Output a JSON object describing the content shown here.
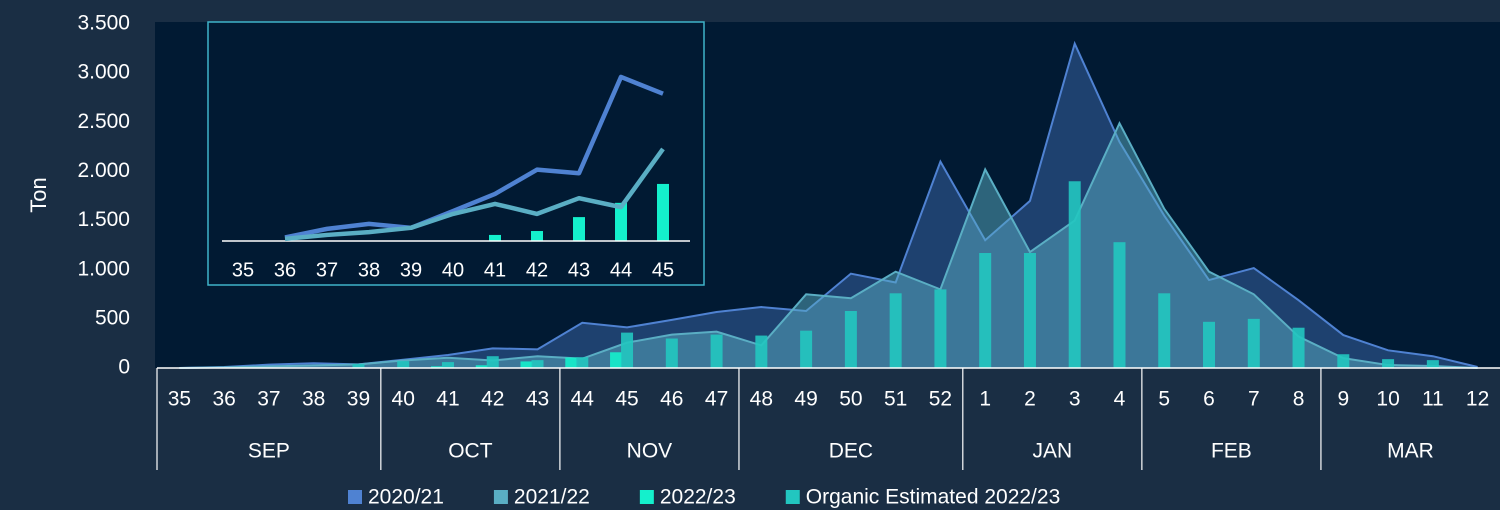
{
  "chart_data": [
    {
      "type": "combo",
      "y_label": "Ton",
      "categories": [
        "35",
        "36",
        "37",
        "38",
        "39",
        "40",
        "41",
        "42",
        "43",
        "44",
        "45",
        "46",
        "47",
        "48",
        "49",
        "50",
        "51",
        "52",
        "1",
        "2",
        "3",
        "4",
        "5",
        "6",
        "7",
        "8",
        "9",
        "10",
        "11",
        "12"
      ],
      "months": [
        "SEP",
        "OCT",
        "NOV",
        "DEC",
        "JAN",
        "FEB",
        "MAR"
      ],
      "month_spans": [
        5,
        4,
        4,
        5,
        4,
        4,
        4
      ],
      "ylim": [
        0,
        3500
      ],
      "yticks": [
        0,
        500,
        {
          "value": 1000,
          "label": "1.000"
        },
        {
          "value": 1500,
          "label": "1.500"
        },
        {
          "value": 2000,
          "label": "2.000"
        },
        {
          "value": 2500,
          "label": "2.500"
        },
        {
          "value": 3000,
          "label": "3.000"
        },
        {
          "value": 3500,
          "label": "3.500"
        }
      ],
      "series": [
        {
          "name": "2020/21",
          "kind": "area",
          "color": "#4f82d2",
          "values": [
            0,
            10,
            34,
            48,
            37,
            84,
            132,
            200,
            190,
            460,
            413,
            490,
            570,
            620,
            580,
            960,
            870,
            2100,
            1300,
            1700,
            3300,
            2300,
            1550,
            895,
            1017,
            690,
            335,
            180,
            120,
            10
          ]
        },
        {
          "name": "2021/22",
          "kind": "area",
          "color": "#5aaec4",
          "values": [
            0,
            6,
            17,
            25,
            37,
            76,
            104,
            76,
            120,
            95,
            258,
            340,
            370,
            230,
            750,
            710,
            980,
            800,
            2020,
            1180,
            1500,
            2490,
            1620,
            980,
            750,
            320,
            100,
            30,
            20,
            0
          ]
        },
        {
          "name": "2022/23",
          "kind": "bar",
          "color": "#14f0cc",
          "values": [
            null,
            null,
            null,
            null,
            null,
            null,
            17,
            28,
            67,
            107,
            160,
            null,
            null,
            null,
            null,
            null,
            null,
            null,
            null,
            null,
            null,
            null,
            null,
            null,
            null,
            null,
            null,
            null,
            null,
            null
          ]
        },
        {
          "name": "Organic Estimated 2022/23",
          "kind": "bar",
          "color": "#22c6c0",
          "values": [
            0,
            0,
            0,
            0,
            40,
            70,
            60,
            120,
            80,
            110,
            360,
            300,
            340,
            330,
            380,
            580,
            760,
            800,
            1170,
            1170,
            1900,
            1280,
            760,
            470,
            500,
            410,
            140,
            90,
            80,
            0
          ]
        }
      ]
    },
    {
      "type": "inset",
      "categories": [
        "35",
        "36",
        "37",
        "38",
        "39",
        "40",
        "41",
        "42",
        "43",
        "44",
        "45"
      ],
      "ylim": [
        0,
        600
      ],
      "series": [
        {
          "name": "2020/21",
          "kind": "line",
          "color": "#4f82d2",
          "values": [
            null,
            10,
            34,
            48,
            37,
            84,
            132,
            200,
            190,
            460,
            413
          ]
        },
        {
          "name": "2021/22",
          "kind": "line",
          "color": "#5aaec4",
          "values": [
            null,
            6,
            17,
            25,
            37,
            76,
            104,
            76,
            120,
            95,
            258
          ]
        },
        {
          "name": "2022/23",
          "kind": "bar",
          "color": "#14f0cc",
          "values": [
            null,
            null,
            null,
            null,
            null,
            null,
            17,
            28,
            67,
            107,
            160
          ]
        }
      ]
    }
  ]
}
